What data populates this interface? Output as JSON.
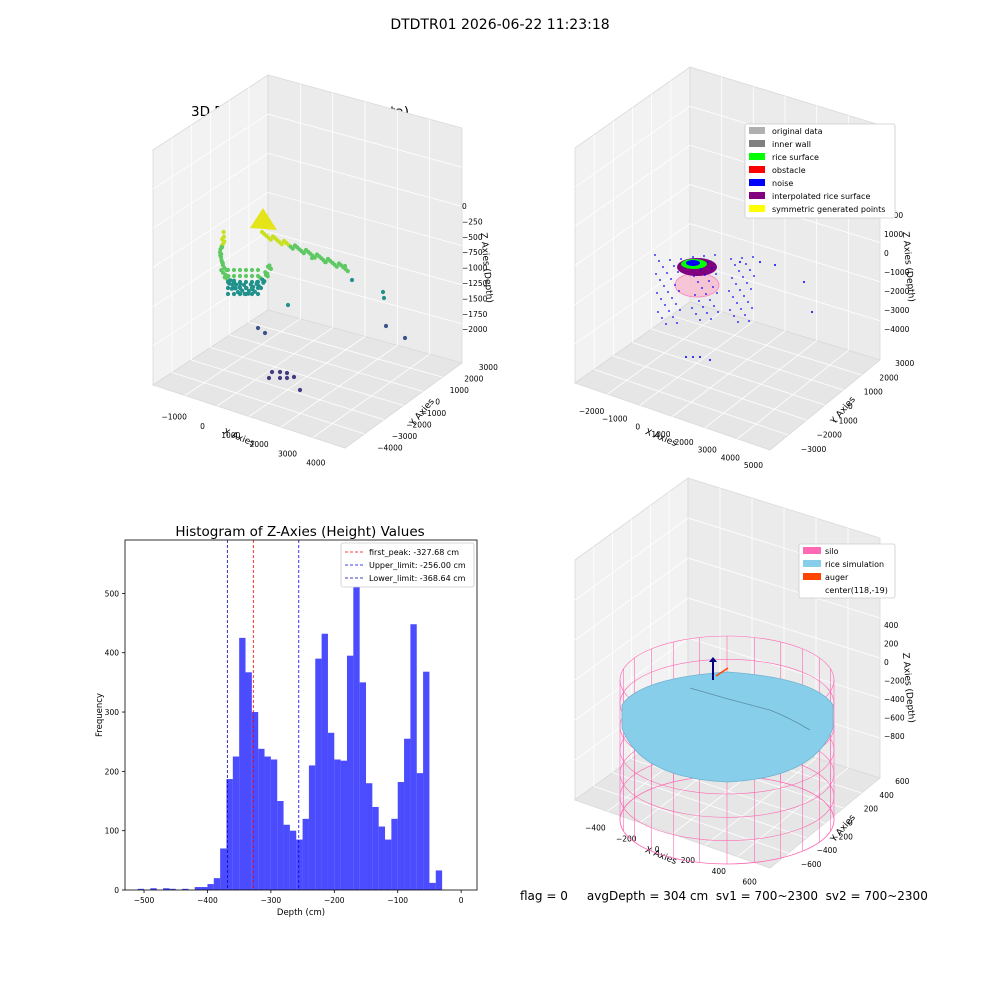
{
  "suptitle": "DTDTR01 2026-06-22 11:23:18",
  "footer": {
    "text": "flag = 0     avgDepth = 304 cm  sv1 = 700~2300  sv2 = 700~2300"
  },
  "chart_data": [
    {
      "type": "scatter",
      "title": "3D Plot of Silo Interior(row data)",
      "xlabel": "X Axies",
      "ylabel": "Y Axies",
      "zlabel": "Z Axies (Depth)",
      "x_ticks": [
        "−1000",
        "0",
        "1000",
        "2000",
        "3000",
        "4000"
      ],
      "y_ticks": [
        "−4000",
        "−3000",
        "−2000",
        "−1000",
        "0",
        "1000",
        "2000",
        "3000"
      ],
      "z_ticks": [
        "0",
        "−250",
        "−500",
        "−750",
        "−1000",
        "−1250",
        "−1500",
        "−1750",
        "−2000"
      ],
      "colormap": "viridis",
      "point_color": "#2a9d8f"
    },
    {
      "type": "scatter",
      "title": "3D classify of Silo Interior",
      "xlabel": "X Axies",
      "ylabel": "Y Axies",
      "zlabel": "Z Axies (Depth)",
      "x_ticks": [
        "−2000",
        "−1000",
        "0",
        "1000",
        "2000",
        "3000",
        "4000",
        "5000"
      ],
      "y_ticks": [
        "−3000",
        "−2000",
        "−1000",
        "0",
        "1000",
        "2000",
        "3000"
      ],
      "z_ticks": [
        "2000",
        "1000",
        "0",
        "−1000",
        "−2000",
        "−3000",
        "−4000"
      ],
      "legend": [
        {
          "label": "original data",
          "color": "#b0b0b0"
        },
        {
          "label": "inner wall",
          "color": "#808080"
        },
        {
          "label": "rice surface",
          "color": "#00ff00"
        },
        {
          "label": "obstacle",
          "color": "#ff0000"
        },
        {
          "label": "noise",
          "color": "#0000ff"
        },
        {
          "label": "interpolated rice surface",
          "color": "#800080"
        },
        {
          "label": "symmetric generated points",
          "color": "#ffff00"
        }
      ]
    },
    {
      "type": "bar",
      "title": "Histogram of Z-Axies (Height) Values",
      "xlabel": "Depth (cm)",
      "ylabel": "Frequency",
      "xlim": [
        -530,
        25
      ],
      "ylim": [
        0,
        590
      ],
      "x_ticks": [
        -500,
        -400,
        -300,
        -200,
        -100,
        0
      ],
      "x_tick_labels": [
        "−500",
        "−400",
        "−300",
        "−200",
        "−100",
        "0"
      ],
      "y_ticks": [
        0,
        100,
        200,
        300,
        400,
        500
      ],
      "bin_start": -520,
      "bin_width": 10,
      "bar_color": "#0000ff",
      "values": [
        0,
        2,
        0,
        3,
        0,
        3,
        2,
        0,
        2,
        0,
        5,
        5,
        10,
        20,
        70,
        187,
        225,
        425,
        367,
        300,
        238,
        225,
        220,
        150,
        110,
        100,
        85,
        120,
        210,
        390,
        432,
        265,
        220,
        218,
        395,
        560,
        350,
        180,
        140,
        107,
        85,
        120,
        182,
        255,
        448,
        197,
        368,
        12,
        33
      ],
      "vlines": [
        {
          "label": "first_peak: -327.68 cm",
          "x": -327.68,
          "color": "#ff0000"
        },
        {
          "label": "Upper_limit: -256.00 cm",
          "x": -256.0,
          "color": "#0000ff"
        },
        {
          "label": "Lower_limit: -368.64 cm",
          "x": -368.64,
          "color": "#0000aa"
        }
      ]
    },
    {
      "type": "scatter",
      "title": "3D simulation of Silo Interior",
      "xlabel": "X Axies",
      "ylabel": "Y Axies",
      "zlabel": "Z Axies (Depth)",
      "x_ticks": [
        "−400",
        "−200",
        "0",
        "200",
        "400",
        "600"
      ],
      "y_ticks": [
        "−600",
        "−400",
        "−200",
        "0",
        "200",
        "400",
        "600"
      ],
      "z_ticks": [
        "400",
        "200",
        "0",
        "−200",
        "−400",
        "−600",
        "−800"
      ],
      "legend": [
        {
          "label": "silo",
          "color": "#ff69b4"
        },
        {
          "label": "rice simulation",
          "color": "#87ceeb"
        },
        {
          "label": "auger",
          "color": "#ff4500"
        },
        {
          "label": "center(118,-19)",
          "color": ""
        }
      ]
    }
  ]
}
